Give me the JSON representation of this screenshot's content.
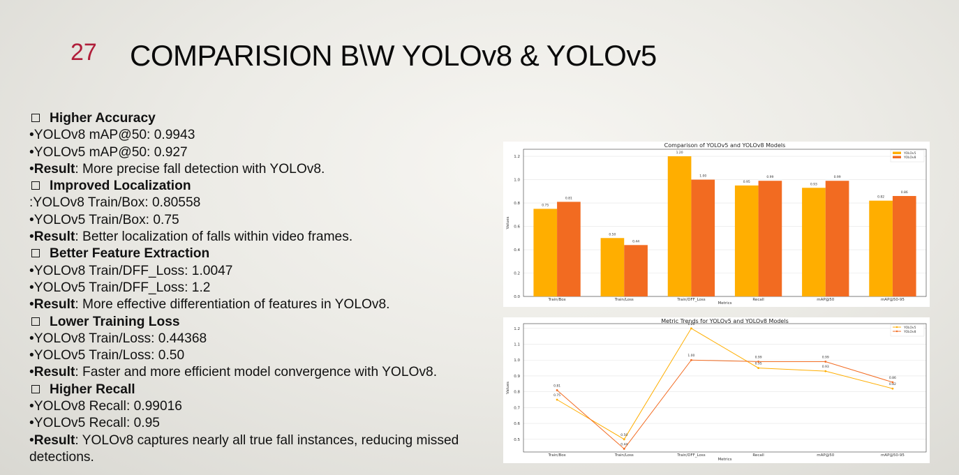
{
  "slide": {
    "number": "27",
    "title": "COMPARISION B\\W YOLOv8 & YOLOv5"
  },
  "sections": [
    {
      "heading": "Higher Accuracy",
      "items": [
        "•YOLOv8 mAP@50: 0.9943",
        "•YOLOv5 mAP@50: 0.927"
      ],
      "result_label": "Result",
      "result_text": ": More precise fall detection with YOLOv8."
    },
    {
      "heading": "Improved Localization",
      "items": [
        ":YOLOv8 Train/Box: 0.80558",
        "•YOLOv5 Train/Box: 0.75"
      ],
      "result_label": "Result",
      "result_text": ": Better localization of falls within video frames."
    },
    {
      "heading": "Better Feature Extraction",
      "items": [
        "•YOLOv8 Train/DFF_Loss: 1.0047",
        "•YOLOv5 Train/DFF_Loss: 1.2"
      ],
      "result_label": "Result",
      "result_text": ": More effective differentiation of features in YOLOv8."
    },
    {
      "heading": "Lower Training Loss",
      "items": [
        "•YOLOv8 Train/Loss: 0.44368",
        "•YOLOv5 Train/Loss: 0.50"
      ],
      "result_label": "Result",
      "result_text": ": Faster and more efficient model convergence with YOLOv8."
    },
    {
      "heading": "Higher Recall",
      "items": [
        "•YOLOv8 Recall: 0.99016",
        "•YOLOv5 Recall: 0.95"
      ],
      "result_label": "Result",
      "result_text": ": YOLOv8 captures nearly all true fall instances, reducing missed",
      "result_text_2": "detections."
    }
  ],
  "bullet_char": "•",
  "colors": {
    "yolov5": "#FFAE00",
    "yolov8": "#F26B21",
    "slide_number": "#B01E3A"
  },
  "chart_data": [
    {
      "type": "bar",
      "title": "Comparison of YOLOv5 and YOLOv8 Models",
      "xlabel": "Metrics",
      "ylabel": "Values",
      "categories": [
        "Train/Box",
        "Train/Loss",
        "Train/DFF_Loss",
        "Recall",
        "mAP@50",
        "mAP@50-95"
      ],
      "series": [
        {
          "name": "YOLOv5",
          "values": [
            0.75,
            0.5,
            1.2,
            0.95,
            0.93,
            0.82
          ],
          "labels": [
            "0.75",
            "0.50",
            "1.20",
            "0.95",
            "0.93",
            "0.82"
          ]
        },
        {
          "name": "YOLOv8",
          "values": [
            0.81,
            0.44,
            1.0,
            0.99,
            0.99,
            0.86
          ],
          "labels": [
            "0.81",
            "0.44",
            "1.00",
            "0.99",
            "0.99",
            "0.86"
          ]
        }
      ],
      "yticks": [
        "0.0",
        "0.2",
        "0.4",
        "0.6",
        "0.8",
        "1.0",
        "1.2"
      ],
      "ylim": [
        0,
        1.26
      ],
      "legend": "top-right",
      "grid": true
    },
    {
      "type": "line",
      "title": "Metric Trends for YOLOv5 and YOLOv8 Models",
      "xlabel": "Metrics",
      "ylabel": "Values",
      "categories": [
        "Train/Box",
        "Train/Loss",
        "Train/DFF_Loss",
        "Recall",
        "mAP@50",
        "mAP@50-95"
      ],
      "series": [
        {
          "name": "YOLOv5",
          "values": [
            0.75,
            0.5,
            1.2,
            0.95,
            0.93,
            0.82
          ],
          "labels": [
            "0.75",
            "0.50",
            "1.20",
            "0.95",
            "0.93",
            "0.82"
          ]
        },
        {
          "name": "YOLOv8",
          "values": [
            0.81,
            0.44,
            1.0,
            0.99,
            0.99,
            0.86
          ],
          "labels": [
            "0.81",
            "0.44",
            "1.00",
            "0.99",
            "0.99",
            "0.86"
          ]
        }
      ],
      "yticks": [
        "0.5",
        "0.6",
        "0.7",
        "0.8",
        "0.9",
        "1.0",
        "1.1",
        "1.2"
      ],
      "ylim": [
        0.42,
        1.23
      ],
      "legend": "top-right",
      "grid": true
    }
  ]
}
